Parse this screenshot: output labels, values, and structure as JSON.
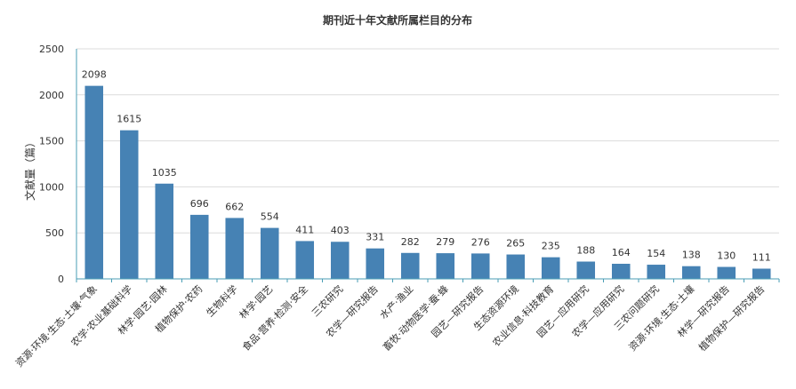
{
  "chart_data": {
    "type": "bar",
    "title": "期刊近十年文献所属栏目的分布",
    "ylabel": "文献量（篇）",
    "xlabel": "",
    "ylim": [
      0,
      2500
    ],
    "yticks": [
      0,
      500,
      1000,
      1500,
      2000,
      2500
    ],
    "grid": true,
    "categories": [
      "资源·环境·生态·土壤·气象",
      "农学·农业基础科学",
      "林学·园艺·园林",
      "植物保护·农药",
      "生物科学",
      "林学·园艺",
      "食品·营养·检测·安全",
      "三农研究",
      "农学—研究报告",
      "水产·渔业",
      "畜牧·动物医学·蚕·蜂",
      "园艺—研究报告",
      "生态资源环境",
      "农业信息·科技教育",
      "园艺—应用研究",
      "农学—应用研究",
      "三农问题研究",
      "资源·环境·生态·土壤",
      "林学—研究报告",
      "植物保护—研究报告"
    ],
    "values": [
      2098,
      1615,
      1035,
      696,
      662,
      554,
      411,
      403,
      331,
      282,
      279,
      276,
      265,
      235,
      188,
      164,
      154,
      138,
      130,
      111
    ],
    "colors": {
      "bar": "#4682b4",
      "grid": "#dcdcdc",
      "axis": "#4a9eb5",
      "text": "#333333"
    }
  }
}
